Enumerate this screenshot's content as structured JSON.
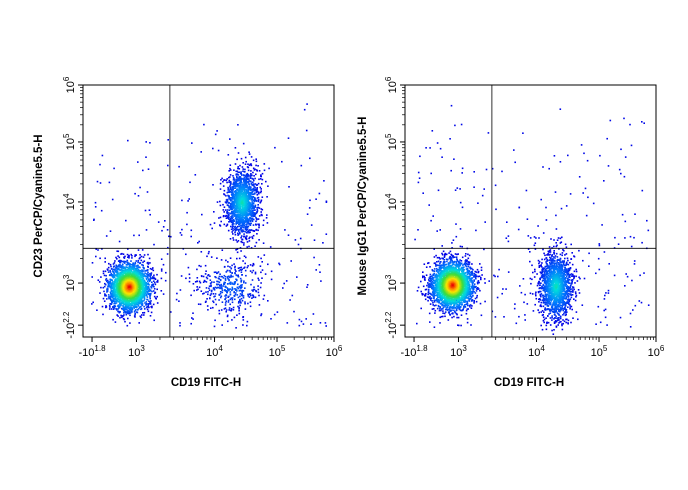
{
  "chart_data": [
    {
      "type": "scatter",
      "subtype": "flow-cytometry-density-dot-plot",
      "xlabel": "CD19 FITC-H",
      "ylabel": "CD23 PerCP/Cyanine5.5-H",
      "x_axis": {
        "scale": "biexponential",
        "range": [
          -63,
          1000000
        ],
        "ticks": [
          {
            "base": "-10",
            "exp": "1.8",
            "value": -63
          },
          {
            "base": "10",
            "exp": "3",
            "value": 1000
          },
          {
            "base": "10",
            "exp": "4",
            "value": 10000
          },
          {
            "base": "10",
            "exp": "5",
            "value": 100000
          },
          {
            "base": "10",
            "exp": "6",
            "value": 1000000
          }
        ]
      },
      "y_axis": {
        "scale": "biexponential",
        "range": [
          -158,
          1000000
        ],
        "ticks": [
          {
            "base": "-10",
            "exp": "2.2",
            "value": -158
          },
          {
            "base": "10",
            "exp": "3",
            "value": 1000
          },
          {
            "base": "10",
            "exp": "4",
            "value": 10000
          },
          {
            "base": "10",
            "exp": "5",
            "value": 100000
          },
          {
            "base": "10",
            "exp": "6",
            "value": 1000000
          }
        ]
      },
      "quadrant_gate": {
        "x": 2700,
        "y": 2700
      },
      "populations": [
        {
          "name": "CD19- cells",
          "center_x": 420,
          "center_y": 650,
          "relative_density": "high"
        },
        {
          "name": "CD19+ CD23+ cells",
          "center_x": 27000,
          "center_y": 10000,
          "relative_density": "medium"
        },
        {
          "name": "CD19+ CD23- cells",
          "center_x": 18000,
          "center_y": 700,
          "relative_density": "low"
        }
      ]
    },
    {
      "type": "scatter",
      "subtype": "flow-cytometry-density-dot-plot",
      "xlabel": "CD19 FITC-H",
      "ylabel": "Mouse IgG1 PerCP/Cyanine5.5-H",
      "x_axis": {
        "scale": "biexponential",
        "range": [
          -63,
          1000000
        ],
        "ticks": [
          {
            "base": "-10",
            "exp": "1.8",
            "value": -63
          },
          {
            "base": "10",
            "exp": "3",
            "value": 1000
          },
          {
            "base": "10",
            "exp": "4",
            "value": 10000
          },
          {
            "base": "10",
            "exp": "5",
            "value": 100000
          },
          {
            "base": "10",
            "exp": "6",
            "value": 1000000
          }
        ]
      },
      "y_axis": {
        "scale": "biexponential",
        "range": [
          -158,
          1000000
        ],
        "ticks": [
          {
            "base": "-10",
            "exp": "2.2",
            "value": -158
          },
          {
            "base": "10",
            "exp": "3",
            "value": 1000
          },
          {
            "base": "10",
            "exp": "4",
            "value": 10000
          },
          {
            "base": "10",
            "exp": "5",
            "value": 100000
          },
          {
            "base": "10",
            "exp": "6",
            "value": 1000000
          }
        ]
      },
      "quadrant_gate": {
        "x": 2700,
        "y": 2700
      },
      "populations": [
        {
          "name": "CD19- cells",
          "center_x": 480,
          "center_y": 820,
          "relative_density": "high"
        },
        {
          "name": "CD19+ cells",
          "center_x": 20000,
          "center_y": 700,
          "relative_density": "medium"
        }
      ]
    }
  ]
}
